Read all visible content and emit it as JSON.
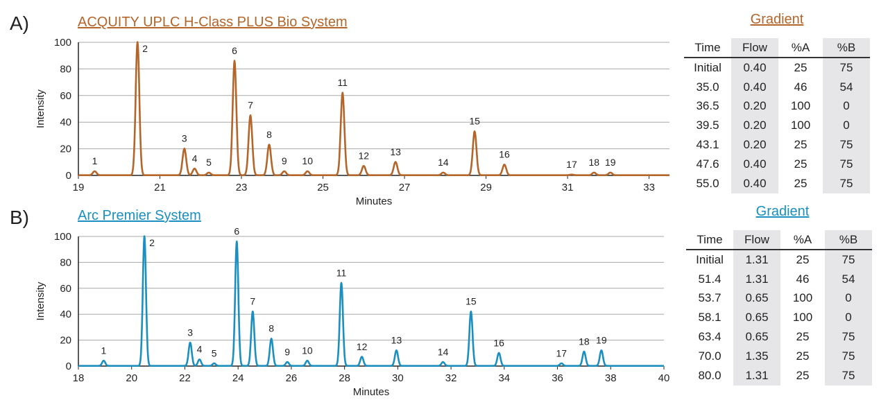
{
  "panels": [
    {
      "letter": "A)",
      "system": "ACQUITY UPLC H-Class PLUS Bio System",
      "color": "#b3652a",
      "gradient_title": "Gradient",
      "table": {
        "headers": [
          "Time",
          "Flow",
          "%A",
          "%B"
        ],
        "rows": [
          [
            "Initial",
            "0.40",
            "25",
            "75"
          ],
          [
            "35.0",
            "0.40",
            "46",
            "54"
          ],
          [
            "36.5",
            "0.20",
            "100",
            "0"
          ],
          [
            "39.5",
            "0.20",
            "100",
            "0"
          ],
          [
            "43.1",
            "0.20",
            "25",
            "75"
          ],
          [
            "47.6",
            "0.40",
            "25",
            "75"
          ],
          [
            "55.0",
            "0.40",
            "25",
            "75"
          ]
        ]
      }
    },
    {
      "letter": "B)",
      "system": "Arc Premier System",
      "color": "#1b8fbf",
      "gradient_title": "Gradient",
      "table": {
        "headers": [
          "Time",
          "Flow",
          "%A",
          "%B"
        ],
        "rows": [
          [
            "Initial",
            "1.31",
            "25",
            "75"
          ],
          [
            "51.4",
            "1.31",
            "46",
            "54"
          ],
          [
            "53.7",
            "0.65",
            "100",
            "0"
          ],
          [
            "58.1",
            "0.65",
            "100",
            "0"
          ],
          [
            "63.4",
            "0.65",
            "25",
            "75"
          ],
          [
            "70.0",
            "1.35",
            "25",
            "75"
          ],
          [
            "80.0",
            "1.31",
            "25",
            "75"
          ]
        ]
      }
    }
  ],
  "chart_data": [
    {
      "type": "line",
      "xlabel": "Minutes",
      "ylabel": "Intensity",
      "xlim": [
        19,
        33.5
      ],
      "ylim": [
        0,
        100
      ],
      "xticks": [
        19,
        21,
        23,
        25,
        27,
        29,
        31,
        33
      ],
      "yticks": [
        0,
        20,
        40,
        60,
        80,
        100
      ],
      "grid": true,
      "color": "#b3652a",
      "peaks": [
        {
          "label": "1",
          "x": 19.4,
          "y": 3
        },
        {
          "label": "2",
          "x": 20.45,
          "y": 100
        },
        {
          "label": "3",
          "x": 21.6,
          "y": 20
        },
        {
          "label": "4",
          "x": 21.85,
          "y": 5
        },
        {
          "label": "5",
          "x": 22.2,
          "y": 2
        },
        {
          "label": "6",
          "x": 22.83,
          "y": 86
        },
        {
          "label": "7",
          "x": 23.22,
          "y": 45
        },
        {
          "label": "8",
          "x": 23.68,
          "y": 23
        },
        {
          "label": "9",
          "x": 24.05,
          "y": 3
        },
        {
          "label": "10",
          "x": 24.62,
          "y": 3
        },
        {
          "label": "11",
          "x": 25.48,
          "y": 62
        },
        {
          "label": "12",
          "x": 26.0,
          "y": 7
        },
        {
          "label": "13",
          "x": 26.78,
          "y": 10
        },
        {
          "label": "14",
          "x": 27.95,
          "y": 2
        },
        {
          "label": "15",
          "x": 28.72,
          "y": 33
        },
        {
          "label": "16",
          "x": 29.45,
          "y": 8
        },
        {
          "label": "17",
          "x": 31.1,
          "y": 0.5
        },
        {
          "label": "18",
          "x": 31.65,
          "y": 2
        },
        {
          "label": "19",
          "x": 32.05,
          "y": 2
        }
      ]
    },
    {
      "type": "line",
      "xlabel": "Minutes",
      "ylabel": "Intensity",
      "xlim": [
        18,
        40
      ],
      "ylim": [
        0,
        100
      ],
      "xticks": [
        18,
        20,
        22,
        24,
        26,
        28,
        30,
        32,
        34,
        36,
        38,
        40
      ],
      "yticks": [
        0,
        20,
        40,
        60,
        80,
        100
      ],
      "grid": true,
      "color": "#1b8fbf",
      "peaks": [
        {
          "label": "1",
          "x": 18.95,
          "y": 4
        },
        {
          "label": "2",
          "x": 20.48,
          "y": 100
        },
        {
          "label": "3",
          "x": 22.2,
          "y": 18
        },
        {
          "label": "4",
          "x": 22.55,
          "y": 5
        },
        {
          "label": "5",
          "x": 23.1,
          "y": 2
        },
        {
          "label": "6",
          "x": 23.95,
          "y": 96
        },
        {
          "label": "7",
          "x": 24.55,
          "y": 42
        },
        {
          "label": "8",
          "x": 25.25,
          "y": 21
        },
        {
          "label": "9",
          "x": 25.85,
          "y": 3
        },
        {
          "label": "10",
          "x": 26.6,
          "y": 4
        },
        {
          "label": "11",
          "x": 27.88,
          "y": 64
        },
        {
          "label": "12",
          "x": 28.65,
          "y": 7
        },
        {
          "label": "13",
          "x": 29.95,
          "y": 12
        },
        {
          "label": "14",
          "x": 31.7,
          "y": 3
        },
        {
          "label": "15",
          "x": 32.75,
          "y": 42
        },
        {
          "label": "16",
          "x": 33.8,
          "y": 10
        },
        {
          "label": "17",
          "x": 36.15,
          "y": 2
        },
        {
          "label": "18",
          "x": 37.0,
          "y": 11
        },
        {
          "label": "19",
          "x": 37.65,
          "y": 12
        }
      ]
    }
  ]
}
